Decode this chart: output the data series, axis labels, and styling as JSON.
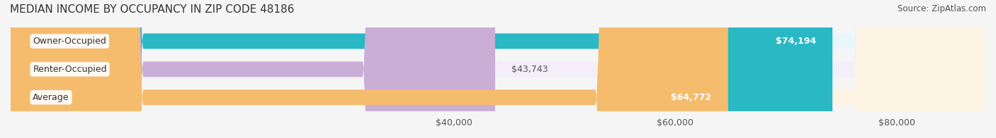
{
  "title": "MEDIAN INCOME BY OCCUPANCY IN ZIP CODE 48186",
  "source": "Source: ZipAtlas.com",
  "categories": [
    "Owner-Occupied",
    "Renter-Occupied",
    "Average"
  ],
  "values": [
    74194,
    43743,
    64772
  ],
  "labels": [
    "$74,194",
    "$43,743",
    "$64,772"
  ],
  "bar_colors": [
    "#29b8c4",
    "#c9aed6",
    "#f5bc6e"
  ],
  "bar_bg_colors": [
    "#e8f8fa",
    "#f3eef8",
    "#fef4e4"
  ],
  "xmin": 0,
  "xmax": 88000,
  "xticks": [
    40000,
    60000,
    80000
  ],
  "xticklabels": [
    "$40,000",
    "$60,000",
    "$80,000"
  ],
  "background_color": "#f5f5f5",
  "bar_height": 0.55,
  "label_fontsize": 9,
  "title_fontsize": 11,
  "source_fontsize": 8.5
}
